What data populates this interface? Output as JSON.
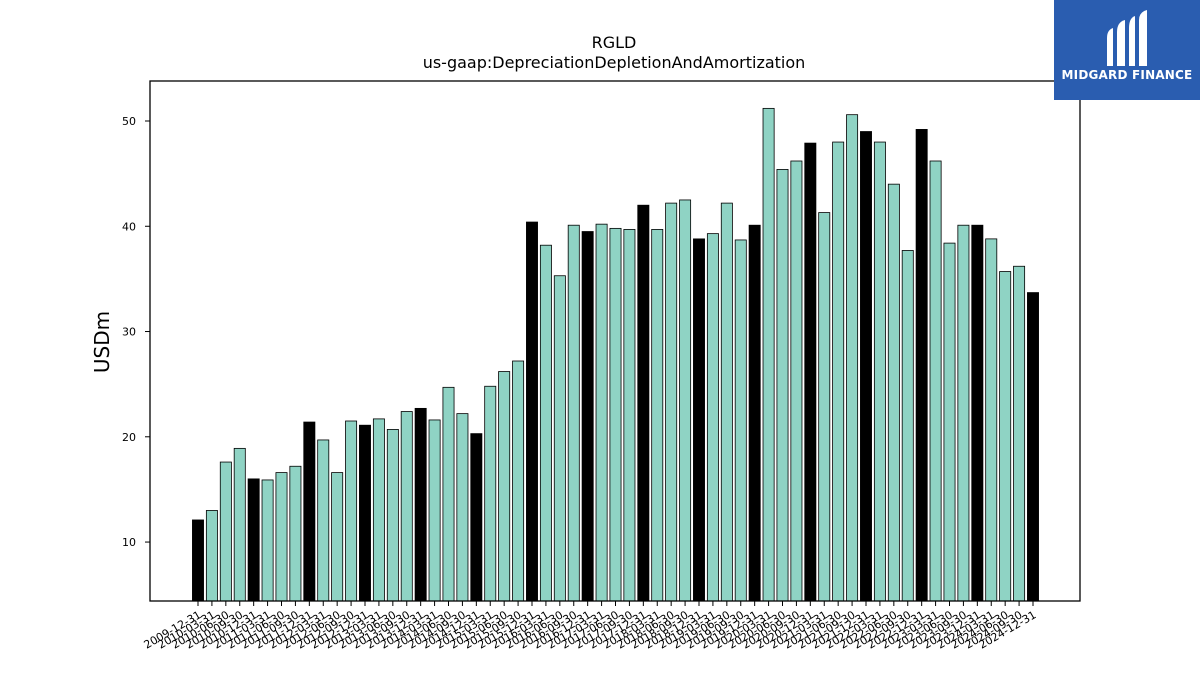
{
  "logo": {
    "text": "MIDGARD FINANCE",
    "bg_color": "#2a5db0",
    "text_color": "#ffffff"
  },
  "chart_data": {
    "type": "bar",
    "title": "RGLD",
    "subtitle": "us-gaap:DepreciationDepletionAndAmortization",
    "ylabel": "USDm",
    "xlabel": "",
    "ylim": [
      4.4,
      53.8
    ],
    "yticks": [
      10,
      20,
      30,
      40,
      50
    ],
    "grid": false,
    "colors": {
      "quarter": "#8fd3c4",
      "annual": "#000000",
      "edge": "#000000"
    },
    "categories": [
      "2009-12-31",
      "2010-03-31",
      "2010-06-30",
      "2010-09-30",
      "2010-12-31",
      "2011-03-31",
      "2011-06-30",
      "2011-09-30",
      "2011-12-31",
      "2012-03-31",
      "2012-06-30",
      "2012-09-30",
      "2012-12-31",
      "2013-03-31",
      "2013-06-30",
      "2013-09-30",
      "2013-12-31",
      "2014-03-31",
      "2014-06-30",
      "2014-09-30",
      "2014-12-31",
      "2015-03-31",
      "2015-06-30",
      "2015-09-30",
      "2015-12-31",
      "2016-03-31",
      "2016-06-30",
      "2016-09-30",
      "2016-12-31",
      "2017-03-31",
      "2017-06-30",
      "2017-09-30",
      "2017-12-31",
      "2018-03-31",
      "2018-06-30",
      "2018-09-30",
      "2018-12-31",
      "2019-03-31",
      "2019-06-30",
      "2019-09-30",
      "2019-12-31",
      "2020-03-31",
      "2020-06-30",
      "2020-09-30",
      "2020-12-31",
      "2021-03-31",
      "2021-06-30",
      "2021-09-30",
      "2021-12-31",
      "2022-03-31",
      "2022-06-30",
      "2022-09-30",
      "2022-12-31",
      "2023-03-31",
      "2023-06-30",
      "2023-09-30",
      "2023-12-31",
      "2024-03-31",
      "2024-06-30",
      "2024-09-30",
      "2024-12-31"
    ],
    "xtick_labels": [
      "2009-12-31",
      "2010-03-31",
      "2010-06-30",
      "2010-09-30",
      "2010-12-31",
      "2011-03-31",
      "2011-06-30",
      "2011-09-30",
      "2011-12-31",
      "2012-03-31",
      "2012-06-30",
      "2012-09-30",
      "2012-12-31",
      "2013-03-31",
      "2013-06-30",
      "2013-09-30",
      "2013-12-31",
      "2014-03-31",
      "2014-06-30",
      "2014-09-30",
      "2014-12-31",
      "2015-03-31",
      "2015-06-30",
      "2015-09-30",
      "2015-12-31",
      "2016-03-31",
      "2016-06-30",
      "2016-09-30",
      "2016-12-31",
      "2017-03-31",
      "2017-06-30",
      "2017-09-30",
      "2017-12-31",
      "2018-03-31",
      "2018-06-30",
      "2018-09-30",
      "2018-12-31",
      "2019-03-31",
      "2019-06-30",
      "2019-09-30",
      "2019-12-31",
      "2020-03-31",
      "2020-06-30",
      "2020-09-30",
      "2020-12-31",
      "2021-03-31",
      "2021-06-30",
      "2021-09-30",
      "2021-12-31",
      "2022-03-31",
      "2022-06-30",
      "2022-09-30",
      "2022-12-31",
      "2023-03-31",
      "2023-06-30",
      "2023-09-30",
      "2023-12-31",
      "2024-03-31",
      "2024-06-30",
      "2024-09-30",
      "2024-12-31"
    ],
    "values": [
      12.1,
      13.0,
      17.6,
      18.9,
      16.0,
      15.9,
      16.6,
      17.2,
      21.4,
      19.7,
      16.6,
      21.5,
      21.1,
      21.7,
      20.7,
      22.4,
      22.7,
      21.6,
      24.7,
      22.2,
      20.3,
      24.8,
      26.2,
      27.2,
      40.4,
      38.2,
      35.3,
      40.1,
      39.5,
      40.2,
      39.8,
      39.7,
      42.0,
      39.7,
      42.2,
      42.5,
      38.8,
      39.3,
      42.2,
      38.7,
      40.1,
      51.2,
      45.4,
      46.2,
      47.9,
      41.3,
      48.0,
      50.6,
      49.0,
      48.0,
      44.0,
      37.7,
      49.2,
      46.2,
      38.4,
      40.1,
      40.1,
      38.8,
      35.7,
      36.2,
      33.7
    ]
  }
}
